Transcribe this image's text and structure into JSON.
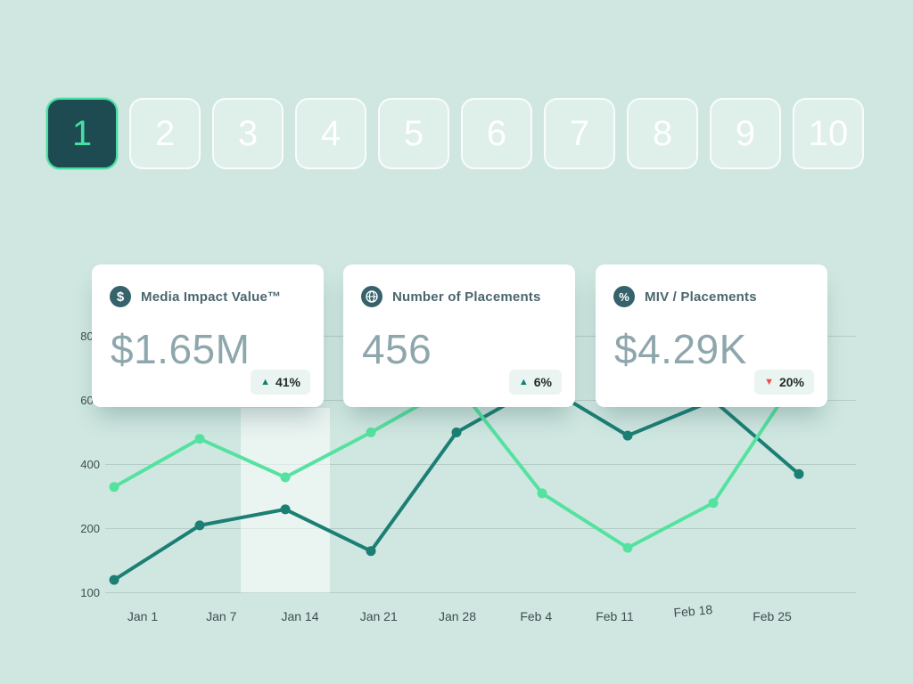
{
  "glyphs": {
    "up": "▲",
    "down": "▼"
  },
  "colors": {
    "background": "#d0e7e1",
    "accent_green": "#45e0a1",
    "selected_button_bg": "#1e4b52",
    "card_bg": "#ffffff",
    "icon_disc": "#35626b",
    "title_text": "#4b666d",
    "value_text": "#8ea7ac",
    "badge_bg": "#eaf4f0",
    "trend_up": "#0f8276",
    "trend_down": "#f04f46",
    "gridline": "#b4cbc6",
    "highlight_band": "rgba(255,255,255,0.55)"
  },
  "pagination": {
    "items": [
      "1",
      "2",
      "3",
      "4",
      "5",
      "6",
      "7",
      "8",
      "9",
      "10"
    ],
    "active": "1"
  },
  "stats": {
    "cards": [
      {
        "icon": "dollar-circle",
        "title": "Media Impact Value™",
        "value": "$1.65M",
        "change": "41%",
        "trend": "up"
      },
      {
        "icon": "globe",
        "title": "Number of Placements",
        "value": "456",
        "change": "6%",
        "trend": "up"
      },
      {
        "icon": "percent-circle",
        "title": "MIV / Placements",
        "value": "$4.29K",
        "change": "20%",
        "trend": "down"
      }
    ]
  },
  "chart_data": {
    "type": "line",
    "title": "",
    "xlabel": "",
    "ylabel": "",
    "x_labels": [
      "Jan 1",
      "Jan 7",
      "Jan 14",
      "Jan 21",
      "Jan 28",
      "Feb 4",
      "Feb 11",
      "Feb 18",
      "Feb 25"
    ],
    "y_ticks": [
      800,
      600,
      400,
      200,
      100
    ],
    "y_ticks_equally_spaced": true,
    "grid": "horizontal",
    "legend": "none",
    "highlight_band_index": 2,
    "series": [
      {
        "name": "dark-teal",
        "color": "#1b7f74",
        "values": [
          120,
          210,
          260,
          165,
          500,
          650,
          490,
          600,
          370
        ]
      },
      {
        "name": "light-green",
        "color": "#55e2a0",
        "values": [
          330,
          480,
          360,
          500,
          650,
          310,
          170,
          280,
          680
        ]
      }
    ]
  }
}
